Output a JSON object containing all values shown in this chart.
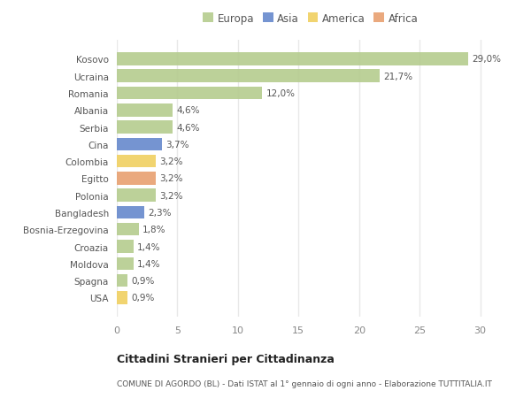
{
  "countries": [
    "Kosovo",
    "Ucraina",
    "Romania",
    "Albania",
    "Serbia",
    "Cina",
    "Colombia",
    "Egitto",
    "Polonia",
    "Bangladesh",
    "Bosnia-Erzegovina",
    "Croazia",
    "Moldova",
    "Spagna",
    "USA"
  ],
  "values": [
    29.0,
    21.7,
    12.0,
    4.6,
    4.6,
    3.7,
    3.2,
    3.2,
    3.2,
    2.3,
    1.8,
    1.4,
    1.4,
    0.9,
    0.9
  ],
  "labels": [
    "29,0%",
    "21,7%",
    "12,0%",
    "4,6%",
    "4,6%",
    "3,7%",
    "3,2%",
    "3,2%",
    "3,2%",
    "2,3%",
    "1,8%",
    "1,4%",
    "1,4%",
    "0,9%",
    "0,9%"
  ],
  "continents": [
    "Europa",
    "Europa",
    "Europa",
    "Europa",
    "Europa",
    "Asia",
    "America",
    "Africa",
    "Europa",
    "Asia",
    "Europa",
    "Europa",
    "Europa",
    "Europa",
    "America"
  ],
  "colors": {
    "Europa": "#b5cc8e",
    "Asia": "#6688cc",
    "America": "#f0d060",
    "Africa": "#e8a070"
  },
  "legend_order": [
    "Europa",
    "Asia",
    "America",
    "Africa"
  ],
  "title": "Cittadini Stranieri per Cittadinanza",
  "subtitle": "COMUNE DI AGORDO (BL) - Dati ISTAT al 1° gennaio di ogni anno - Elaborazione TUTTITALIA.IT",
  "xlim": [
    0,
    32
  ],
  "xticks": [
    0,
    5,
    10,
    15,
    20,
    25,
    30
  ],
  "background_color": "#ffffff",
  "grid_color": "#e8e8e8",
  "bar_height": 0.75
}
